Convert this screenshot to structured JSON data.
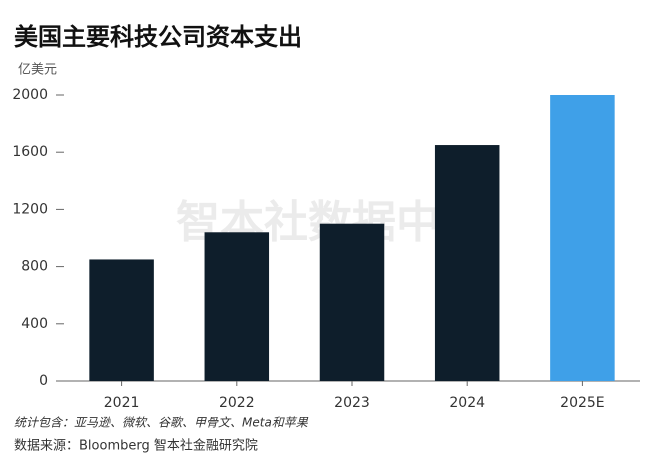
{
  "chart_data": {
    "type": "bar",
    "title": "美国主要科技公司资本支出",
    "y_label": "亿美元",
    "categories": [
      "2021",
      "2022",
      "2023",
      "2024",
      "2025E"
    ],
    "values": [
      850,
      1040,
      1100,
      1650,
      2000
    ],
    "colors": [
      "#0e1e2b",
      "#0e1e2b",
      "#0e1e2b",
      "#0e1e2b",
      "#3fa0e8"
    ],
    "ylim": [
      0,
      2000
    ],
    "yticks": [
      0,
      400,
      800,
      1200,
      1600,
      2000
    ],
    "watermark": "智本社数据中心",
    "note": "统计包含：亚马逊、微软、谷歌、甲骨文、Meta和苹果",
    "source": "数据来源：Bloomberg 智本社金融研究院"
  }
}
